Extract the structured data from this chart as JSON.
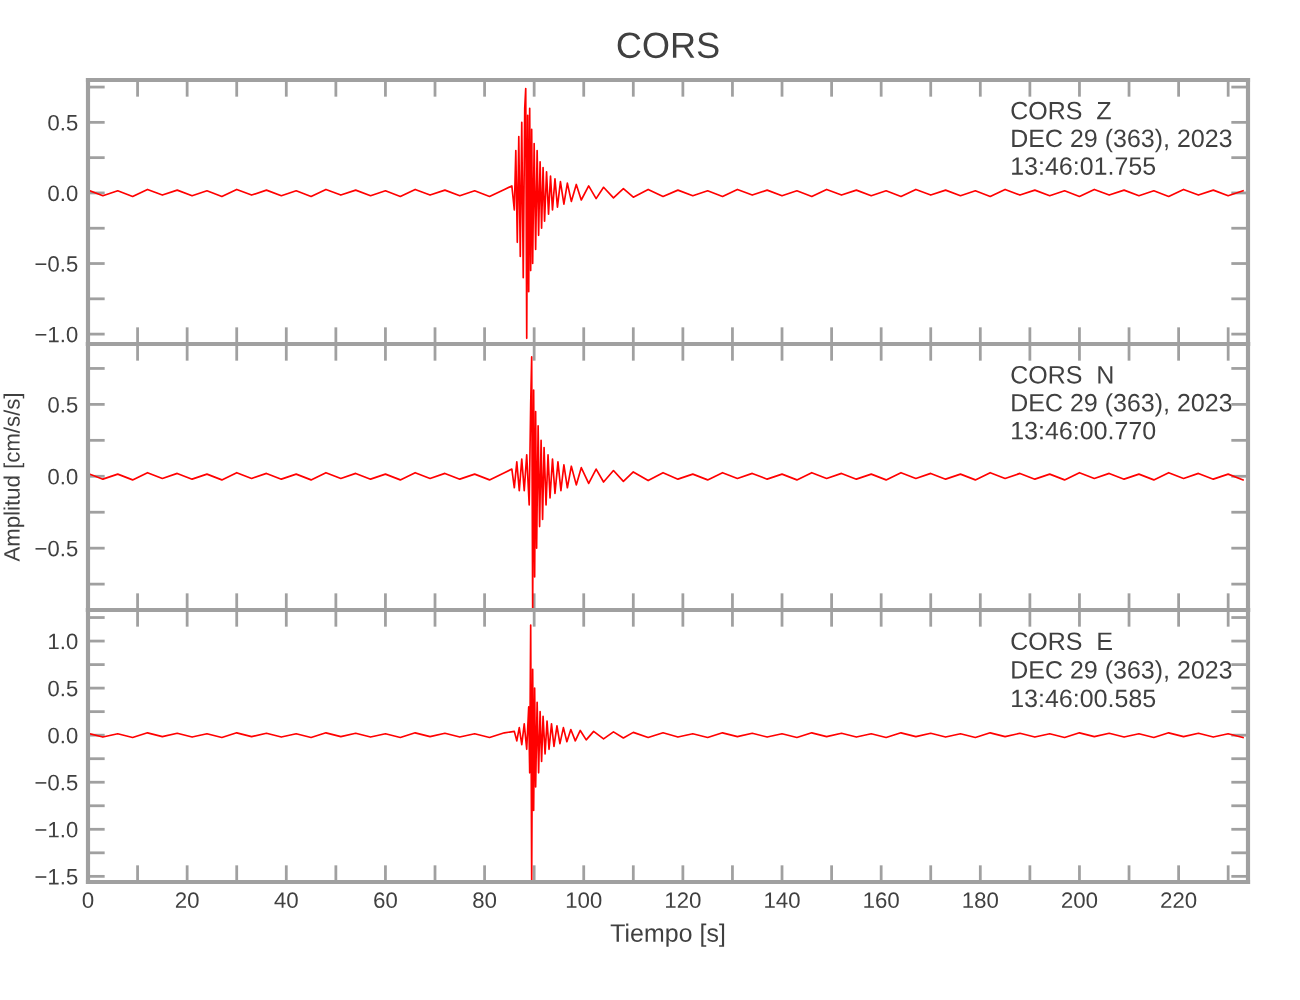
{
  "chart_data": [
    {
      "type": "line",
      "title": "CORS",
      "tick_labels": "y",
      "xlim": [
        0,
        234
      ],
      "ylim": [
        -1.07,
        0.8
      ],
      "xticks": [
        0,
        {
          "value": 10,
          "label": null
        },
        20,
        {
          "value": 30,
          "label": null
        },
        40,
        {
          "value": 50,
          "label": null
        },
        60,
        {
          "value": 70,
          "label": null
        },
        80,
        {
          "value": 90,
          "label": null
        },
        100,
        {
          "value": 110,
          "label": null
        },
        120,
        {
          "value": 130,
          "label": null
        },
        140,
        {
          "value": 150,
          "label": null
        },
        160,
        {
          "value": 170,
          "label": null
        },
        180,
        {
          "value": 190,
          "label": null
        },
        200,
        {
          "value": 210,
          "label": null
        },
        220,
        {
          "value": 230,
          "label": null
        }
      ],
      "yticks": [
        {
          "value": -1.0,
          "label": "−1.0"
        },
        {
          "value": -0.75,
          "label": null
        },
        {
          "value": -0.5,
          "label": "−0.5"
        },
        {
          "value": -0.25,
          "label": null
        },
        {
          "value": 0.0,
          "label": "0.0"
        },
        {
          "value": 0.25,
          "label": null
        },
        {
          "value": 0.5,
          "label": "0.5"
        },
        {
          "value": 0.75,
          "label": null
        }
      ],
      "annotations": [
        "CORS  Z",
        "DEC 29 (363), 2023",
        "13:46:01.755"
      ],
      "series": [
        {
          "color": "#ff0000",
          "x": [
            0,
            3,
            6,
            9,
            12,
            15,
            18,
            21,
            24,
            27,
            30,
            33,
            36,
            39,
            42,
            45,
            48,
            51,
            54,
            57,
            60,
            63,
            66,
            69,
            72,
            75,
            78,
            81,
            84,
            85.5,
            86,
            86.3,
            86.6,
            86.9,
            87.2,
            87.5,
            87.8,
            88.1,
            88.3,
            88.5,
            88.7,
            88.9,
            89.1,
            89.3,
            89.5,
            89.7,
            90.0,
            90.3,
            90.6,
            90.9,
            91.2,
            91.5,
            91.8,
            92.1,
            92.5,
            92.9,
            93.3,
            93.7,
            94.2,
            94.7,
            95.3,
            96,
            96.7,
            97.5,
            98.5,
            99.5,
            101,
            102.5,
            104,
            106,
            108,
            110,
            113,
            116,
            119,
            122,
            125,
            128,
            131,
            134,
            137,
            140,
            143,
            146,
            149,
            152,
            155,
            158,
            161,
            164,
            167,
            170,
            173,
            176,
            179,
            182,
            185,
            188,
            191,
            194,
            197,
            200,
            203,
            206,
            209,
            212,
            215,
            218,
            221,
            224,
            227,
            230,
            233
          ],
          "values": [
            0.02,
            -0.02,
            0.015,
            -0.025,
            0.025,
            -0.015,
            0.02,
            -0.02,
            0.015,
            -0.025,
            0.025,
            -0.015,
            0.02,
            -0.02,
            0.015,
            -0.025,
            0.025,
            -0.015,
            0.02,
            -0.02,
            0.015,
            -0.025,
            0.025,
            -0.015,
            0.02,
            -0.02,
            0.015,
            -0.025,
            0.025,
            0.05,
            -0.12,
            0.3,
            -0.35,
            0.4,
            -0.45,
            0.5,
            -0.6,
            0.6,
            0.74,
            -1.03,
            0.55,
            -0.7,
            0.6,
            -0.55,
            0.45,
            -0.5,
            0.35,
            -0.4,
            0.3,
            -0.3,
            0.22,
            -0.25,
            0.18,
            -0.2,
            0.15,
            -0.15,
            0.12,
            -0.12,
            0.1,
            -0.1,
            0.08,
            -0.08,
            0.07,
            -0.06,
            0.06,
            -0.05,
            0.05,
            -0.04,
            0.04,
            -0.035,
            0.03,
            -0.03,
            0.025,
            -0.025,
            0.02,
            -0.02,
            0.015,
            -0.025,
            0.025,
            -0.015,
            0.02,
            -0.02,
            0.015,
            -0.025,
            0.025,
            -0.015,
            0.02,
            -0.02,
            0.015,
            -0.025,
            0.025,
            -0.015,
            0.02,
            -0.02,
            0.015,
            -0.025,
            0.025,
            -0.015,
            0.02,
            -0.02,
            0.015,
            -0.025,
            0.025,
            -0.015,
            0.02,
            -0.02,
            0.015,
            -0.025,
            0.025,
            -0.015,
            0.02,
            -0.02,
            0.015
          ]
        }
      ]
    },
    {
      "type": "line",
      "ylabel": "Amplitud [cm/s/s]",
      "tick_labels": "y",
      "xlim": [
        0,
        234
      ],
      "ylim": [
        -0.93,
        0.92
      ],
      "xticks": [
        0,
        {
          "value": 10,
          "label": null
        },
        20,
        {
          "value": 30,
          "label": null
        },
        40,
        {
          "value": 50,
          "label": null
        },
        60,
        {
          "value": 70,
          "label": null
        },
        80,
        {
          "value": 90,
          "label": null
        },
        100,
        {
          "value": 110,
          "label": null
        },
        120,
        {
          "value": 130,
          "label": null
        },
        140,
        {
          "value": 150,
          "label": null
        },
        160,
        {
          "value": 170,
          "label": null
        },
        180,
        {
          "value": 190,
          "label": null
        },
        200,
        {
          "value": 210,
          "label": null
        },
        220,
        {
          "value": 230,
          "label": null
        }
      ],
      "yticks": [
        {
          "value": -0.75,
          "label": null
        },
        {
          "value": -0.5,
          "label": "−0.5"
        },
        {
          "value": -0.25,
          "label": null
        },
        {
          "value": 0.0,
          "label": "0.0"
        },
        {
          "value": 0.25,
          "label": null
        },
        {
          "value": 0.5,
          "label": "0.5"
        },
        {
          "value": 0.75,
          "label": null
        }
      ],
      "annotations": [
        "CORS  N",
        "DEC 29 (363), 2023",
        "13:46:00.770"
      ],
      "series": [
        {
          "color": "#ff0000",
          "x": [
            0,
            3,
            6,
            9,
            12,
            15,
            18,
            21,
            24,
            27,
            30,
            33,
            36,
            39,
            42,
            45,
            48,
            51,
            54,
            57,
            60,
            63,
            66,
            69,
            72,
            75,
            78,
            81,
            84,
            85.5,
            86,
            86.5,
            87,
            87.5,
            88,
            88.5,
            89,
            89.3,
            89.5,
            89.7,
            89.9,
            90.1,
            90.3,
            90.5,
            90.8,
            91.1,
            91.4,
            91.7,
            92,
            92.4,
            92.8,
            93.2,
            93.7,
            94.2,
            94.8,
            95.4,
            96,
            96.7,
            97.5,
            98.5,
            99.5,
            101,
            102.5,
            104,
            106,
            108,
            110,
            113,
            116,
            119,
            122,
            125,
            128,
            131,
            134,
            137,
            140,
            143,
            146,
            149,
            152,
            155,
            158,
            161,
            164,
            167,
            170,
            173,
            176,
            179,
            182,
            185,
            188,
            191,
            194,
            197,
            200,
            203,
            206,
            209,
            212,
            215,
            218,
            221,
            224,
            227,
            230,
            233
          ],
          "values": [
            0.02,
            -0.02,
            0.015,
            -0.025,
            0.025,
            -0.015,
            0.02,
            -0.02,
            0.015,
            -0.025,
            0.025,
            -0.015,
            0.02,
            -0.02,
            0.015,
            -0.025,
            0.025,
            -0.015,
            0.02,
            -0.02,
            0.015,
            -0.025,
            0.025,
            -0.015,
            0.02,
            -0.02,
            0.015,
            -0.025,
            0.025,
            0.05,
            -0.08,
            0.1,
            -0.1,
            0.12,
            -0.1,
            0.15,
            -0.2,
            0.5,
            0.83,
            -0.92,
            0.6,
            -0.7,
            0.45,
            -0.5,
            0.35,
            -0.35,
            0.25,
            -0.3,
            0.2,
            -0.2,
            0.15,
            -0.15,
            0.12,
            -0.12,
            0.1,
            -0.1,
            0.08,
            -0.08,
            0.07,
            -0.06,
            0.06,
            -0.05,
            0.05,
            -0.04,
            0.04,
            -0.035,
            0.03,
            -0.03,
            0.025,
            -0.02,
            0.015,
            -0.025,
            0.025,
            -0.015,
            0.02,
            -0.02,
            0.015,
            -0.025,
            0.025,
            -0.015,
            0.02,
            -0.02,
            0.015,
            -0.025,
            0.025,
            -0.015,
            0.02,
            -0.02,
            0.015,
            -0.025,
            0.025,
            -0.015,
            0.02,
            -0.02,
            0.015,
            -0.025,
            0.025,
            -0.015,
            0.02,
            -0.02,
            0.015,
            -0.025,
            0.025,
            -0.015,
            0.02,
            -0.02,
            0.015,
            -0.025
          ]
        }
      ]
    },
    {
      "type": "line",
      "xlabel": "Tiempo [s]",
      "xlim": [
        0,
        234
      ],
      "ylim": [
        -1.56,
        1.33
      ],
      "xticks": [
        0,
        {
          "value": 10,
          "label": null
        },
        20,
        {
          "value": 30,
          "label": null
        },
        40,
        {
          "value": 50,
          "label": null
        },
        60,
        {
          "value": 70,
          "label": null
        },
        80,
        {
          "value": 90,
          "label": null
        },
        100,
        {
          "value": 110,
          "label": null
        },
        120,
        {
          "value": 130,
          "label": null
        },
        140,
        {
          "value": 150,
          "label": null
        },
        160,
        {
          "value": 170,
          "label": null
        },
        180,
        {
          "value": 190,
          "label": null
        },
        200,
        {
          "value": 210,
          "label": null
        },
        220,
        {
          "value": 230,
          "label": null
        }
      ],
      "yticks": [
        {
          "value": -1.5,
          "label": "−1.5"
        },
        {
          "value": -1.25,
          "label": null
        },
        {
          "value": -1.0,
          "label": "−1.0"
        },
        {
          "value": -0.75,
          "label": null
        },
        {
          "value": -0.5,
          "label": "−0.5"
        },
        {
          "value": -0.25,
          "label": null
        },
        {
          "value": 0.0,
          "label": "0.0"
        },
        {
          "value": 0.25,
          "label": null
        },
        {
          "value": 0.5,
          "label": "0.5"
        },
        {
          "value": 0.75,
          "label": null
        },
        {
          "value": 1.0,
          "label": "1.0"
        },
        {
          "value": 1.25,
          "label": null
        }
      ],
      "annotations": [
        "CORS  E",
        "DEC 29 (363), 2023",
        "13:46:00.585"
      ],
      "series": [
        {
          "color": "#ff0000",
          "x": [
            0,
            3,
            6,
            9,
            12,
            15,
            18,
            21,
            24,
            27,
            30,
            33,
            36,
            39,
            42,
            45,
            48,
            51,
            54,
            57,
            60,
            63,
            66,
            69,
            72,
            75,
            78,
            81,
            84,
            86,
            86.5,
            87,
            87.5,
            88,
            88.5,
            88.9,
            89.1,
            89.3,
            89.5,
            89.7,
            89.9,
            90.1,
            90.3,
            90.6,
            90.9,
            91.2,
            91.5,
            91.8,
            92.2,
            92.6,
            93,
            93.5,
            94,
            94.6,
            95.2,
            95.9,
            96.6,
            97.4,
            98.3,
            99.3,
            100.5,
            102,
            104,
            106,
            108,
            110,
            113,
            116,
            119,
            122,
            125,
            128,
            131,
            134,
            137,
            140,
            143,
            146,
            149,
            152,
            155,
            158,
            161,
            164,
            167,
            170,
            173,
            176,
            179,
            182,
            185,
            188,
            191,
            194,
            197,
            200,
            203,
            206,
            209,
            212,
            215,
            218,
            221,
            224,
            227,
            230,
            233
          ],
          "values": [
            0.02,
            -0.02,
            0.015,
            -0.025,
            0.025,
            -0.015,
            0.02,
            -0.02,
            0.015,
            -0.025,
            0.025,
            -0.015,
            0.02,
            -0.02,
            0.015,
            -0.025,
            0.025,
            -0.015,
            0.02,
            -0.02,
            0.015,
            -0.025,
            0.025,
            -0.015,
            0.02,
            -0.02,
            0.015,
            -0.025,
            0.025,
            0.04,
            -0.06,
            0.08,
            -0.1,
            0.12,
            -0.15,
            0.3,
            -0.4,
            1.17,
            -1.55,
            0.7,
            -0.8,
            0.5,
            -0.55,
            0.35,
            -0.4,
            0.25,
            -0.28,
            0.2,
            -0.2,
            0.15,
            -0.15,
            0.12,
            -0.12,
            0.1,
            -0.09,
            0.08,
            -0.07,
            0.06,
            -0.06,
            0.05,
            -0.05,
            0.04,
            -0.04,
            0.035,
            -0.03,
            0.03,
            -0.025,
            0.025,
            -0.02,
            0.015,
            -0.025,
            0.025,
            -0.015,
            0.02,
            -0.02,
            0.015,
            -0.025,
            0.025,
            -0.015,
            0.02,
            -0.02,
            0.015,
            -0.025,
            0.025,
            -0.015,
            0.02,
            -0.02,
            0.015,
            -0.025,
            0.025,
            -0.015,
            0.02,
            -0.02,
            0.015,
            -0.025,
            0.025,
            -0.015,
            0.02,
            -0.02,
            0.015,
            -0.025,
            0.025,
            -0.015,
            0.02,
            -0.02,
            0.015,
            -0.025
          ]
        }
      ]
    }
  ]
}
